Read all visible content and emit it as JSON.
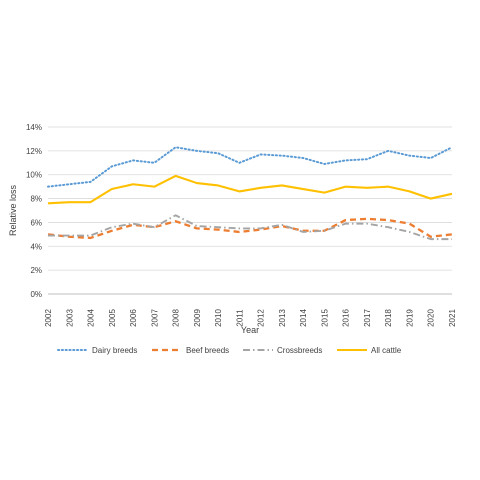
{
  "chart_data": {
    "type": "line",
    "title": "",
    "xlabel": "Year",
    "ylabel": "Relative loss",
    "ylim": [
      0,
      14
    ],
    "y_tick_values": [
      0,
      2,
      4,
      6,
      8,
      10,
      12,
      14
    ],
    "y_tick_labels": [
      "0%",
      "2%",
      "4%",
      "6%",
      "8%",
      "10%",
      "12%",
      "14%"
    ],
    "categories": [
      "2002",
      "2003",
      "2004",
      "2005",
      "2006",
      "2007",
      "2008",
      "2009",
      "2010",
      "2011",
      "2012",
      "2013",
      "2014",
      "2015",
      "2016",
      "2017",
      "2018",
      "2019",
      "2020",
      "2021"
    ],
    "grid": "horizontal",
    "legend_position": "bottom",
    "series": [
      {
        "name": "Dairy breeds",
        "color": "#5B9BD5",
        "style": "dotted",
        "values": [
          9.0,
          9.2,
          9.4,
          10.7,
          11.2,
          11.0,
          12.3,
          12.0,
          11.8,
          11.0,
          11.7,
          11.6,
          11.4,
          10.9,
          11.2,
          11.3,
          12.0,
          11.6,
          11.4,
          12.3
        ]
      },
      {
        "name": "Beef breeds",
        "color": "#ED7D31",
        "style": "dashed",
        "values": [
          5.0,
          4.8,
          4.7,
          5.3,
          5.8,
          5.6,
          6.1,
          5.5,
          5.4,
          5.2,
          5.4,
          5.7,
          5.3,
          5.3,
          6.2,
          6.3,
          6.2,
          5.9,
          4.8,
          5.0
        ]
      },
      {
        "name": "Crossbreeds",
        "color": "#A5A5A5",
        "style": "dashdot",
        "values": [
          4.9,
          4.9,
          4.9,
          5.6,
          5.9,
          5.6,
          6.6,
          5.7,
          5.6,
          5.5,
          5.5,
          5.8,
          5.2,
          5.3,
          5.9,
          5.9,
          5.6,
          5.2,
          4.6,
          4.6
        ]
      },
      {
        "name": "All cattle",
        "color": "#FFC000",
        "style": "solid",
        "values": [
          7.6,
          7.7,
          7.7,
          8.8,
          9.2,
          9.0,
          9.9,
          9.3,
          9.1,
          8.6,
          8.9,
          9.1,
          8.8,
          8.5,
          9.0,
          8.9,
          9.0,
          8.6,
          8.0,
          8.4
        ]
      }
    ]
  }
}
